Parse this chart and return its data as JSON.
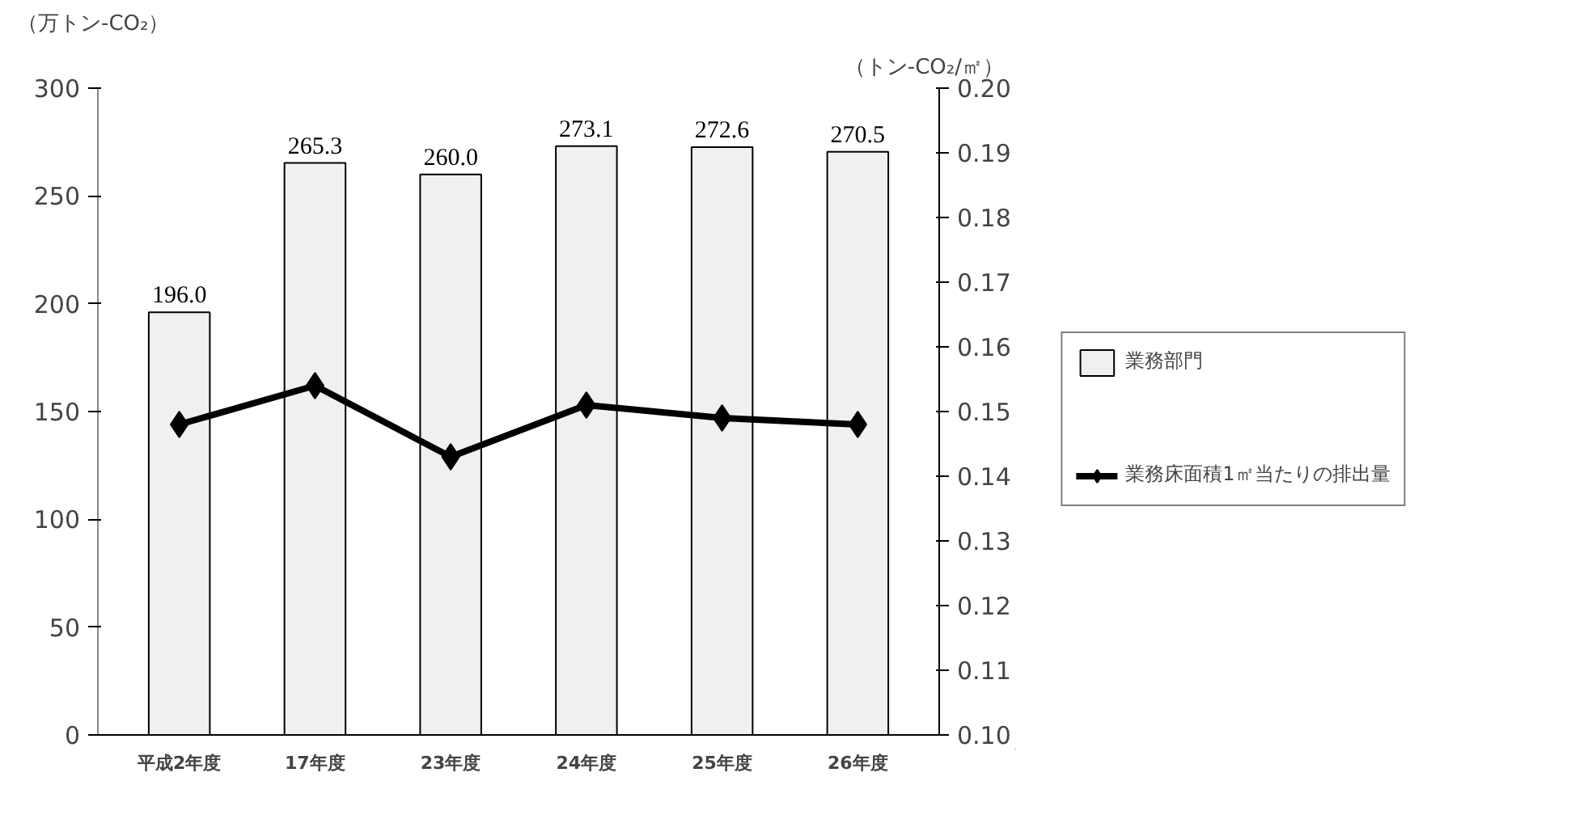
{
  "chart_data": {
    "type": "bar",
    "ylabel": "（万トン-CO₂）",
    "y2label": "（トン-CO₂/㎡）",
    "categories": [
      "平成2年度",
      "17年度",
      "23年度",
      "24年度",
      "25年度",
      "26年度"
    ],
    "series": [
      {
        "name": "業務部門",
        "color": "#f0f0f0",
        "values": [
          196.0,
          265.3,
          260.0,
          273.1,
          272.6,
          270.5
        ],
        "value_labels": [
          "196.0",
          "265.3",
          "260.0",
          "273.1",
          "272.6",
          "270.5"
        ]
      },
      {
        "name": "業務床面積1㎡当たりの排出量",
        "type": "line",
        "axis": "y2",
        "color": "#000000",
        "marker": "diamond",
        "values": [
          0.148,
          0.154,
          0.143,
          0.151,
          0.149,
          0.148
        ]
      }
    ],
    "ylim": [
      0,
      300
    ],
    "yticks": [
      0,
      50,
      100,
      150,
      200,
      250,
      300
    ],
    "y2lim": [
      0.1,
      0.2
    ],
    "y2ticks": [
      {
        "value": 0.1,
        "label": "0.10"
      },
      {
        "value": 0.11,
        "label": "0.11"
      },
      {
        "value": 0.12,
        "label": "0.12"
      },
      {
        "value": 0.13,
        "label": "0.13"
      },
      {
        "value": 0.14,
        "label": "0.14"
      },
      {
        "value": 0.15,
        "label": "0.15"
      },
      {
        "value": 0.16,
        "label": "0.16"
      },
      {
        "value": 0.17,
        "label": "0.17"
      },
      {
        "value": 0.18,
        "label": "0.18"
      },
      {
        "value": 0.19,
        "label": "0.19"
      },
      {
        "value": 0.2,
        "label": "0.20"
      }
    ],
    "grid": false,
    "legend": "right"
  }
}
